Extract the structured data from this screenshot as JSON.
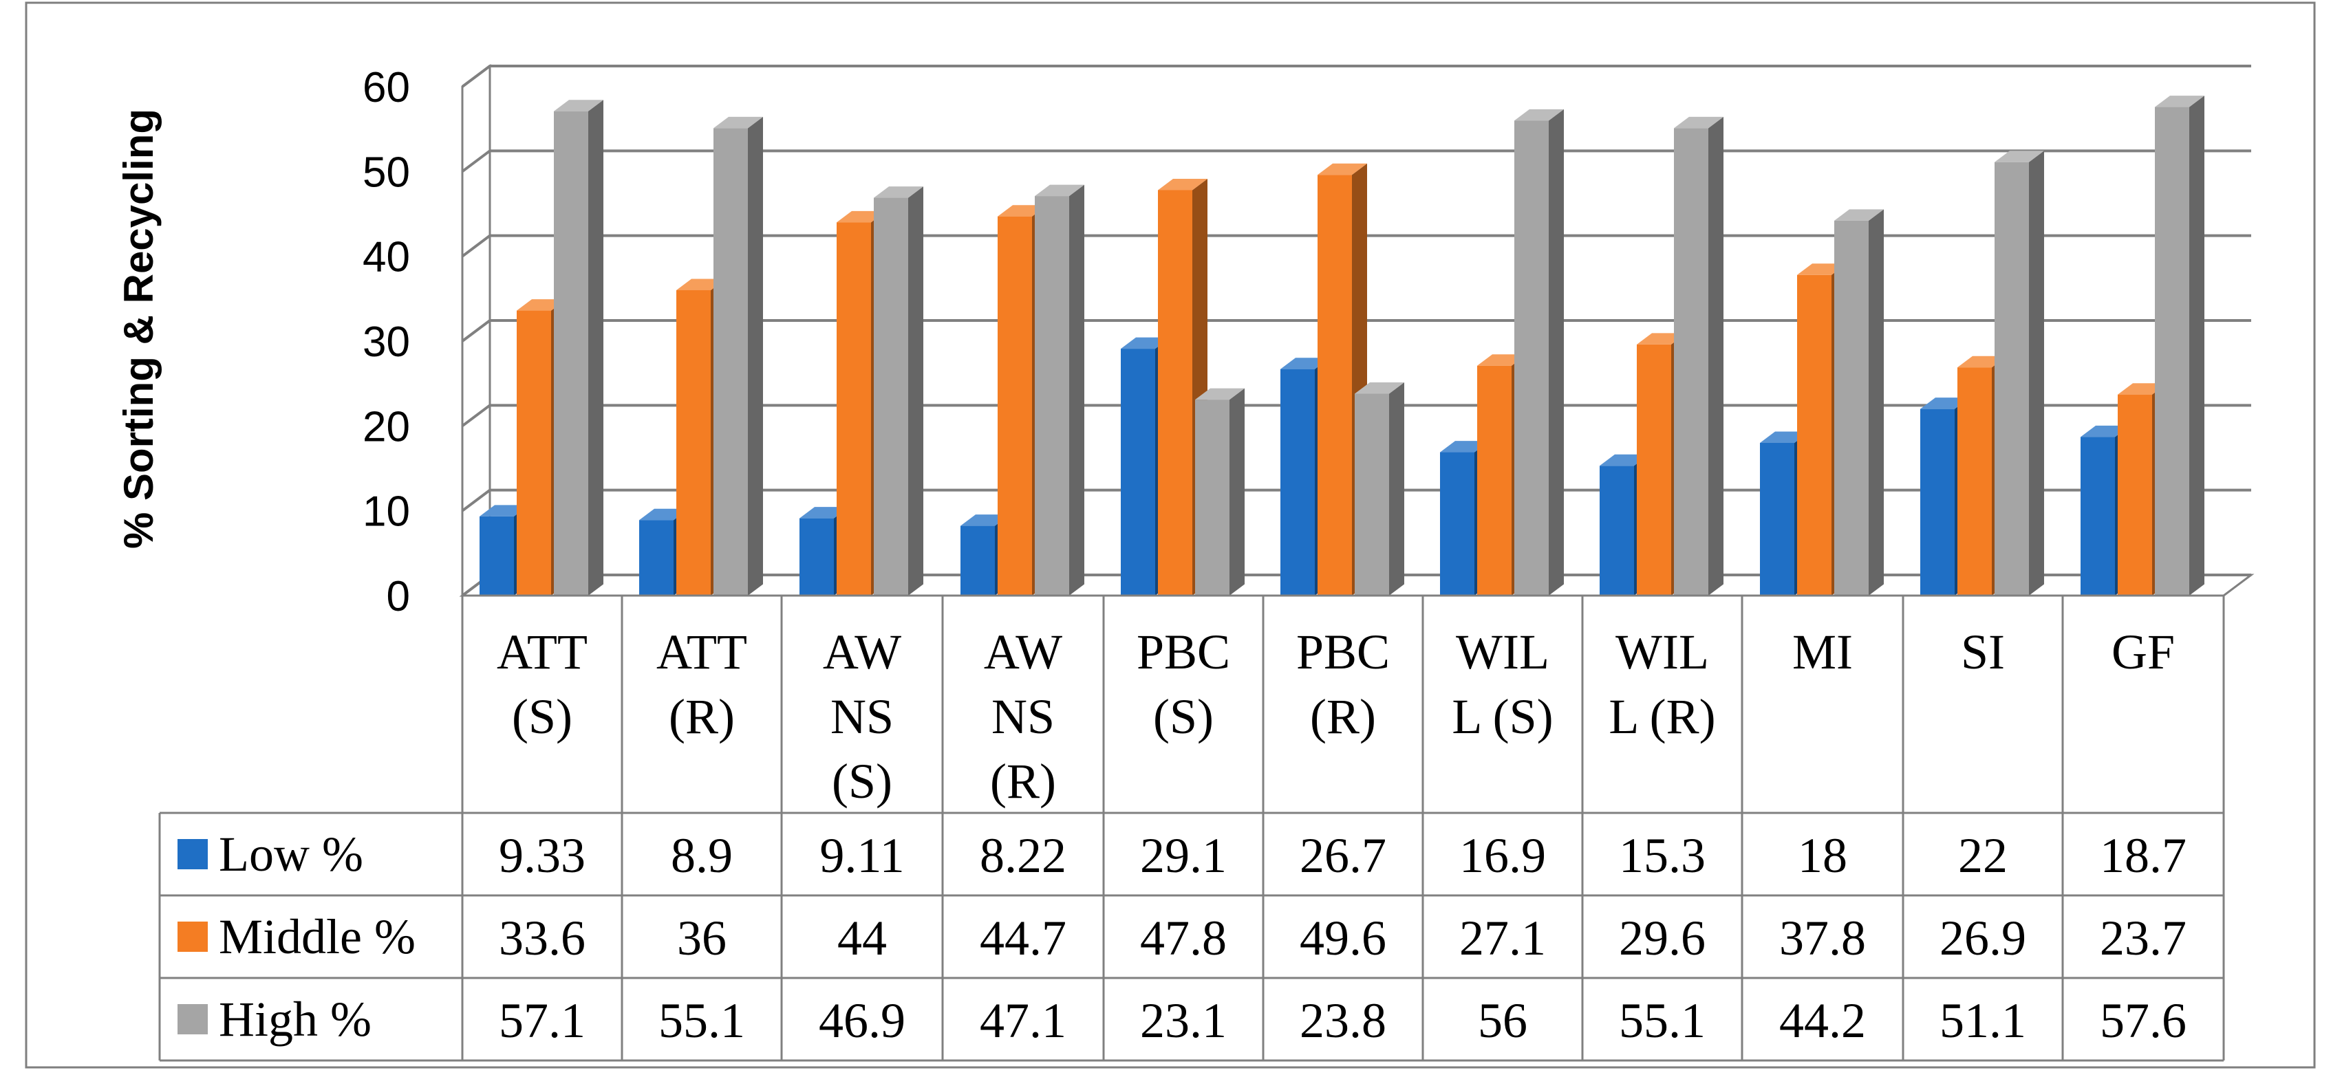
{
  "chart_data": {
    "type": "bar",
    "title": "",
    "xlabel": "",
    "ylabel": "%  Sorting & Recycling",
    "ylim": [
      0,
      60
    ],
    "yticks": [
      0,
      10,
      20,
      30,
      40,
      50,
      60
    ],
    "grid": true,
    "legend": "table-left",
    "categories": [
      [
        "ATT",
        "(S)"
      ],
      [
        "ATT",
        "(R)"
      ],
      [
        "AW",
        "NS",
        "(S)"
      ],
      [
        "AW",
        "NS",
        "(R)"
      ],
      [
        "PBC",
        "(S)"
      ],
      [
        "PBC",
        "(R)"
      ],
      [
        "WIL",
        "L (S)"
      ],
      [
        "WIL",
        "L (R)"
      ],
      [
        "MI"
      ],
      [
        "SI"
      ],
      [
        "GF"
      ]
    ],
    "series": [
      {
        "name": "Low %",
        "color": "#1f6fc5",
        "labels": [
          "9.33",
          "8.9",
          "9.11",
          "8.22",
          "29.1",
          "26.7",
          "16.9",
          "15.3",
          "18",
          "22",
          "18.7"
        ],
        "values": [
          9.33,
          8.9,
          9.11,
          8.22,
          29.1,
          26.7,
          16.9,
          15.3,
          18,
          22,
          18.7
        ]
      },
      {
        "name": "Middle %",
        "color": "#f47d23",
        "labels": [
          "33.6",
          "36",
          "44",
          "44.7",
          "47.8",
          "49.6",
          "27.1",
          "29.6",
          "37.8",
          "26.9",
          "23.7"
        ],
        "values": [
          33.6,
          36,
          44,
          44.7,
          47.8,
          49.6,
          27.1,
          29.6,
          37.8,
          26.9,
          23.7
        ]
      },
      {
        "name": "High %",
        "color": "#a5a5a5",
        "labels": [
          "57.1",
          "55.1",
          "46.9",
          "47.1",
          "23.1",
          "23.8",
          "56",
          "55.1",
          "44.2",
          "51.1",
          "57.6"
        ],
        "values": [
          57.1,
          55.1,
          46.9,
          47.1,
          23.1,
          23.8,
          56,
          55.1,
          44.2,
          51.1,
          57.6
        ]
      }
    ]
  }
}
